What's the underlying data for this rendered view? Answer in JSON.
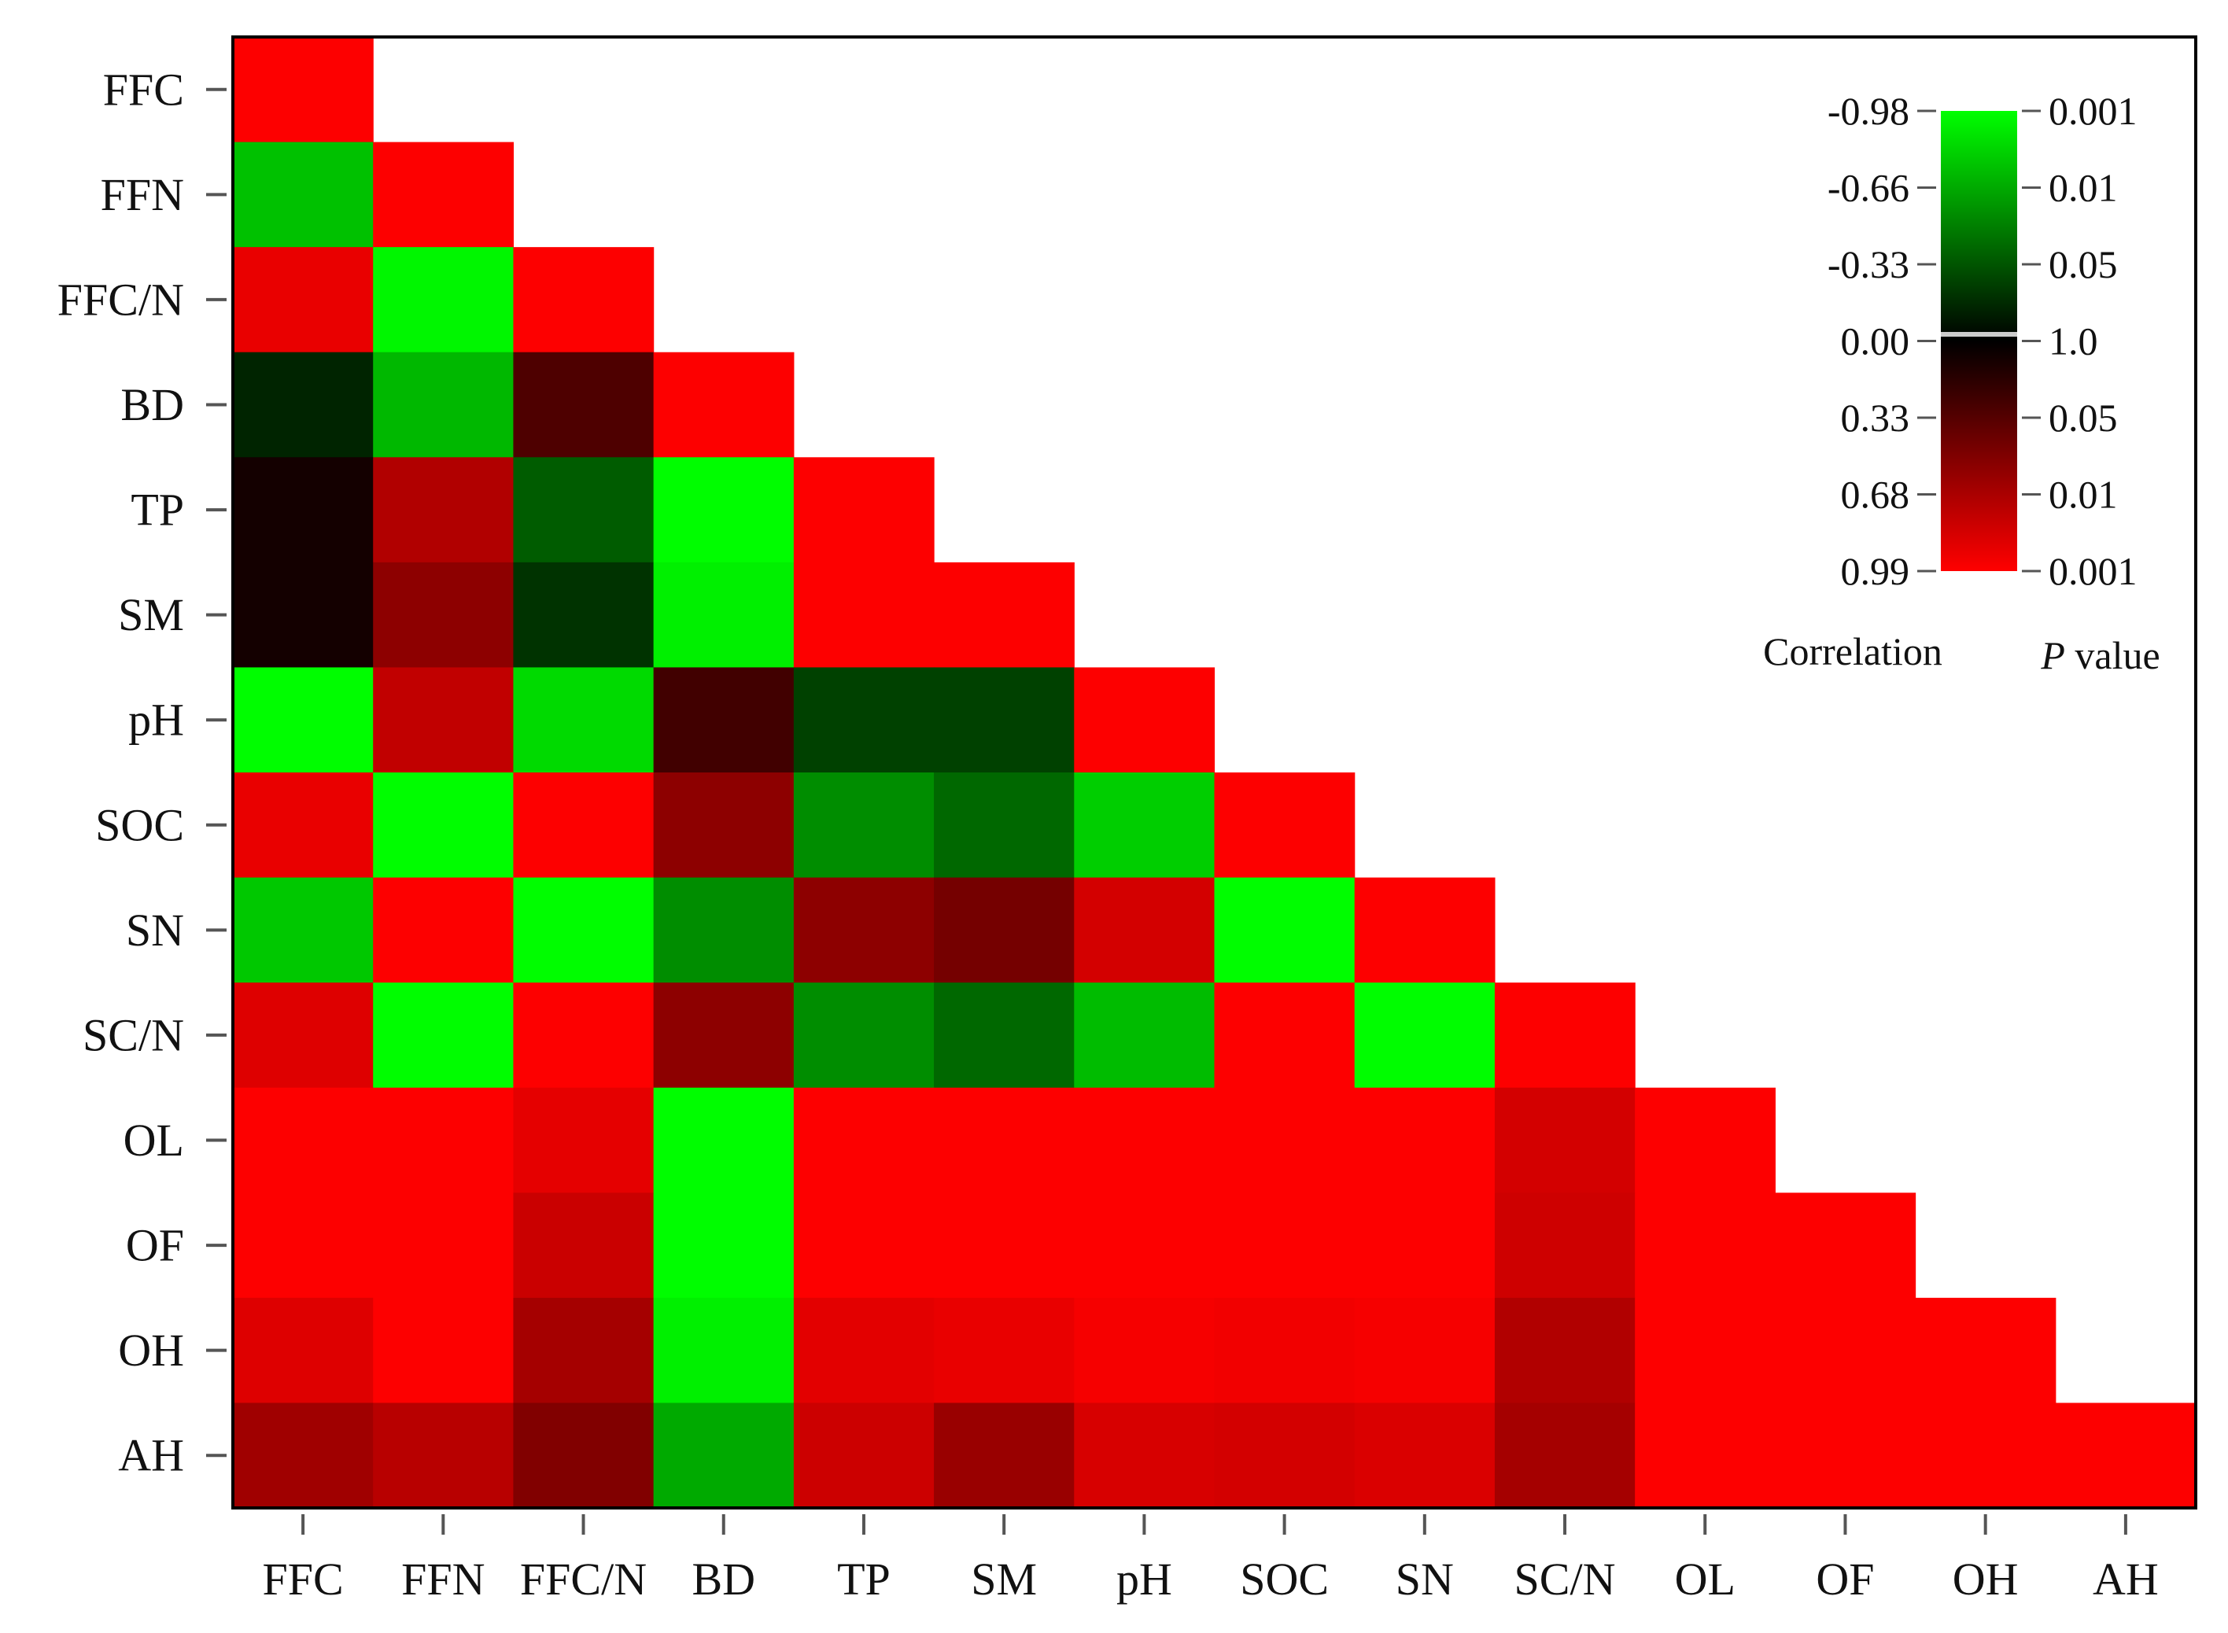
{
  "chart_data": {
    "type": "heatmap",
    "variables": [
      "FFC",
      "FFN",
      "FFC/N",
      "BD",
      "TP",
      "SM",
      "pH",
      "SOC",
      "SN",
      "SC/N",
      "OL",
      "OF",
      "OH",
      "AH"
    ],
    "row_labels": [
      "FFC",
      "FFN",
      "FFC/N",
      "BD",
      "TP",
      "SM",
      "pH",
      "SOC",
      "SN",
      "SC/N",
      "OL",
      "OF",
      "OH",
      "AH"
    ],
    "column_labels": [
      "FFC",
      "FFN",
      "FFC/N",
      "BD",
      "TP",
      "SM",
      "pH",
      "SOC",
      "SN",
      "SC/N",
      "OL",
      "OF",
      "OH",
      "AH"
    ],
    "layout": "lower-triangle",
    "matrix": [
      [
        0.99
      ],
      [
        -0.72,
        0.99
      ],
      [
        0.9,
        -0.96,
        0.99
      ],
      [
        -0.1,
        -0.68,
        0.25,
        0.99
      ],
      [
        0.05,
        0.65,
        -0.3,
        -0.99,
        0.99
      ],
      [
        0.05,
        0.5,
        -0.15,
        -0.93,
        0.99,
        0.99
      ],
      [
        -0.99,
        0.72,
        -0.83,
        0.2,
        -0.2,
        -0.2,
        0.99
      ],
      [
        0.9,
        -0.99,
        0.99,
        0.5,
        -0.5,
        -0.35,
        -0.78,
        0.99
      ],
      [
        -0.75,
        0.99,
        -0.99,
        -0.5,
        0.5,
        0.4,
        0.8,
        -0.99,
        0.99
      ],
      [
        0.85,
        -0.99,
        0.99,
        0.5,
        -0.5,
        -0.35,
        -0.7,
        0.99,
        -0.99,
        0.99
      ],
      [
        0.99,
        0.99,
        0.88,
        -0.99,
        0.99,
        0.99,
        0.99,
        0.99,
        0.99,
        0.8,
        0.99
      ],
      [
        0.99,
        0.99,
        0.76,
        -0.99,
        0.99,
        0.99,
        0.99,
        0.99,
        0.99,
        0.78,
        0.99,
        0.99
      ],
      [
        0.85,
        0.99,
        0.6,
        -0.93,
        0.87,
        0.9,
        0.96,
        0.94,
        0.96,
        0.65,
        0.99,
        0.99,
        0.99
      ],
      [
        0.58,
        0.68,
        0.45,
        -0.62,
        0.77,
        0.55,
        0.82,
        0.8,
        0.83,
        0.6,
        0.99,
        0.99,
        0.99,
        0.99
      ]
    ],
    "legend": {
      "correlation_ticks": [
        "-0.98",
        "-0.66",
        "-0.33",
        "0.00",
        "0.33",
        "0.68",
        "0.99"
      ],
      "correlation_values": [
        -0.98,
        -0.66,
        -0.33,
        0.0,
        0.33,
        0.68,
        0.99
      ],
      "p_value_ticks": [
        "0.001",
        "0.01",
        "0.05",
        "1.0",
        "0.05",
        "0.01",
        "0.001"
      ],
      "correlation_title": "Correlation",
      "p_value_title_italic": "P",
      "p_value_title_rest": " value",
      "placement": "top-right"
    },
    "colors": {
      "negative": "#00ff00",
      "zero": "#000000",
      "positive": "#ff0000"
    },
    "grid": false
  }
}
